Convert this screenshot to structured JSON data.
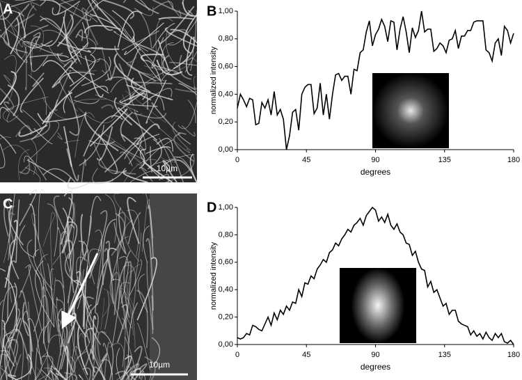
{
  "panels": [
    {
      "label": "A",
      "scale_bar": "10µm"
    },
    {
      "label": "C",
      "scale_bar": "10µm"
    }
  ],
  "chart_data": [
    {
      "type": "line",
      "panel_label": "B",
      "x_label": "degrees",
      "y_label": "normalized intensity",
      "color": "#000000",
      "x": [
        0,
        2,
        4,
        6,
        8,
        10,
        12,
        14,
        16,
        18,
        20,
        22,
        24,
        26,
        28,
        30,
        32,
        34,
        36,
        38,
        40,
        42,
        44,
        46,
        48,
        50,
        52,
        54,
        56,
        58,
        60,
        62,
        64,
        66,
        68,
        70,
        72,
        74,
        76,
        78,
        80,
        82,
        84,
        86,
        88,
        90,
        92,
        94,
        96,
        98,
        100,
        102,
        104,
        106,
        108,
        110,
        112,
        114,
        116,
        118,
        120,
        122,
        124,
        126,
        128,
        130,
        132,
        134,
        136,
        138,
        140,
        142,
        144,
        146,
        148,
        150,
        152,
        154,
        156,
        158,
        160,
        162,
        164,
        166,
        168,
        170,
        172,
        174,
        176,
        178,
        180
      ],
      "values": [
        0.3,
        0.4,
        0.36,
        0.31,
        0.37,
        0.36,
        0.18,
        0.19,
        0.34,
        0.3,
        0.36,
        0.25,
        0.42,
        0.25,
        0.29,
        0.22,
        0.0,
        0.1,
        0.27,
        0.29,
        0.14,
        0.4,
        0.45,
        0.47,
        0.47,
        0.26,
        0.3,
        0.48,
        0.25,
        0.4,
        0.22,
        0.4,
        0.54,
        0.55,
        0.5,
        0.53,
        0.53,
        0.4,
        0.58,
        0.57,
        0.7,
        0.72,
        0.85,
        0.93,
        0.75,
        0.83,
        0.87,
        0.94,
        0.89,
        0.78,
        0.93,
        0.92,
        0.72,
        0.87,
        0.96,
        0.85,
        0.7,
        0.88,
        0.81,
        0.86,
        1.0,
        0.85,
        0.87,
        0.87,
        0.71,
        0.73,
        0.77,
        0.75,
        0.7,
        0.79,
        0.8,
        0.86,
        0.73,
        0.82,
        0.82,
        0.86,
        0.86,
        0.92,
        0.93,
        0.93,
        0.93,
        0.72,
        0.7,
        0.64,
        0.77,
        0.8,
        0.68,
        0.89,
        0.86,
        0.77,
        0.84
      ],
      "xlim": [
        0,
        180
      ],
      "ylim": [
        0,
        1
      ],
      "xticks": [
        0,
        45,
        90,
        135,
        180
      ],
      "yticks": [
        {
          "value": 0,
          "label": "0,00"
        },
        {
          "value": 0.2,
          "label": "0,20"
        },
        {
          "value": 0.4,
          "label": "0,40"
        },
        {
          "value": 0.6,
          "label": "0,60"
        },
        {
          "value": 0.8,
          "label": "0,80"
        },
        {
          "value": 1,
          "label": "1,00"
        }
      ]
    },
    {
      "type": "line",
      "panel_label": "D",
      "x_label": "degrees",
      "y_label": "normalized intensity",
      "color": "#000000",
      "x": [
        0,
        2,
        4,
        6,
        8,
        10,
        12,
        14,
        16,
        18,
        20,
        22,
        24,
        26,
        28,
        30,
        32,
        34,
        36,
        38,
        40,
        42,
        44,
        46,
        48,
        50,
        52,
        54,
        56,
        58,
        60,
        62,
        64,
        66,
        68,
        70,
        72,
        74,
        76,
        78,
        80,
        82,
        84,
        86,
        88,
        90,
        92,
        94,
        96,
        98,
        100,
        102,
        104,
        106,
        108,
        110,
        112,
        114,
        116,
        118,
        120,
        122,
        124,
        126,
        128,
        130,
        132,
        134,
        136,
        138,
        140,
        142,
        144,
        146,
        148,
        150,
        152,
        154,
        156,
        158,
        160,
        162,
        164,
        166,
        168,
        170,
        172,
        174,
        176,
        178,
        180
      ],
      "values": [
        0.05,
        0.04,
        0.05,
        0.08,
        0.07,
        0.14,
        0.13,
        0.11,
        0.1,
        0.15,
        0.2,
        0.14,
        0.23,
        0.18,
        0.25,
        0.22,
        0.28,
        0.25,
        0.31,
        0.3,
        0.4,
        0.35,
        0.45,
        0.44,
        0.5,
        0.48,
        0.55,
        0.58,
        0.62,
        0.6,
        0.67,
        0.69,
        0.74,
        0.72,
        0.77,
        0.8,
        0.84,
        0.82,
        0.87,
        0.89,
        0.92,
        0.87,
        0.94,
        0.97,
        1.0,
        0.98,
        0.9,
        0.93,
        0.89,
        0.95,
        0.87,
        0.84,
        0.88,
        0.82,
        0.8,
        0.74,
        0.73,
        0.65,
        0.68,
        0.6,
        0.55,
        0.54,
        0.42,
        0.46,
        0.38,
        0.4,
        0.34,
        0.28,
        0.3,
        0.22,
        0.25,
        0.25,
        0.17,
        0.15,
        0.14,
        0.13,
        0.07,
        0.1,
        0.06,
        0.08,
        0.04,
        0.09,
        0.05,
        0.03,
        0.08,
        0.05,
        0.08,
        0.02,
        0.01,
        0.03,
        0.0
      ],
      "xlim": [
        0,
        180
      ],
      "ylim": [
        0,
        1
      ],
      "xticks": [
        0,
        45,
        90,
        135,
        180
      ],
      "yticks": [
        {
          "value": 0,
          "label": "0,00"
        },
        {
          "value": 0.2,
          "label": "0,20"
        },
        {
          "value": 0.4,
          "label": "0,40"
        },
        {
          "value": 0.6,
          "label": "0,60"
        },
        {
          "value": 0.8,
          "label": "0,80"
        },
        {
          "value": 1,
          "label": "1,00"
        }
      ]
    }
  ]
}
